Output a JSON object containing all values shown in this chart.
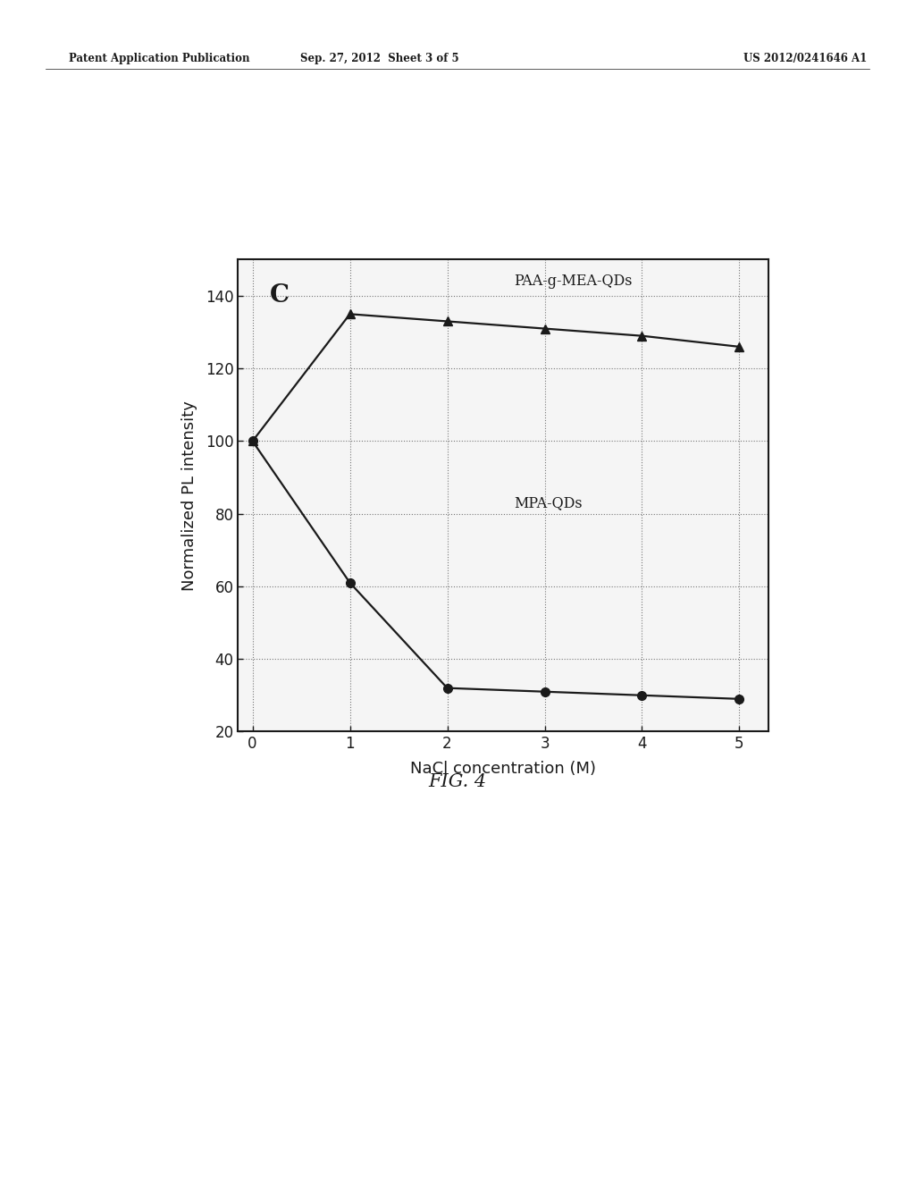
{
  "paa_x": [
    0,
    1,
    2,
    3,
    4,
    5
  ],
  "paa_y": [
    100,
    135,
    133,
    131,
    129,
    126
  ],
  "mpa_x": [
    0,
    1,
    2,
    3,
    4,
    5
  ],
  "mpa_y": [
    100,
    61,
    32,
    31,
    30,
    29
  ],
  "paa_label": "PAA-g-MEA-QDs",
  "mpa_label": "MPA-QDs",
  "panel_label": "C",
  "xlabel": "NaCl concentration (M)",
  "ylabel": "Normalized PL intensity",
  "fig_label": "FIG. 4",
  "header_left": "Patent Application Publication",
  "header_mid": "Sep. 27, 2012  Sheet 3 of 5",
  "header_right": "US 2012/0241646 A1",
  "xlim": [
    -0.15,
    5.3
  ],
  "ylim": [
    20,
    150
  ],
  "yticks": [
    20,
    40,
    60,
    80,
    100,
    120,
    140
  ],
  "xticks": [
    0,
    1,
    2,
    3,
    4,
    5
  ],
  "color": "#1a1a1a",
  "bg_color": "#ffffff",
  "plot_bg": "#f5f5f5",
  "grid_color": "#777777",
  "marker_size": 7,
  "line_width": 1.6
}
